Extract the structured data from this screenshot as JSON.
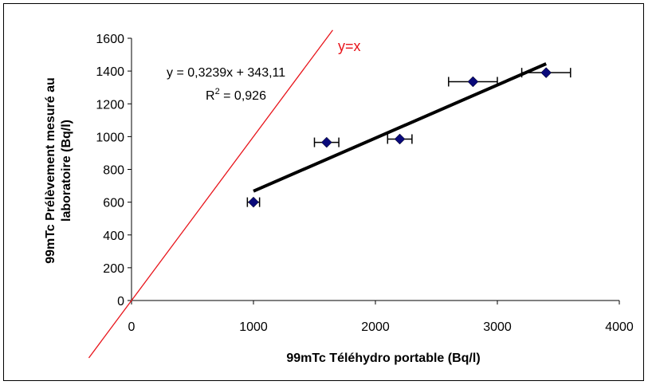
{
  "chart_data": {
    "type": "scatter",
    "title": "",
    "xlabel": "99mTc Téléhydro portable (Bq/l)",
    "ylabel_lines": [
      "99mTc Prélèvement mesuré au",
      "laboratoire (Bq/l)"
    ],
    "xlim": [
      0,
      4000
    ],
    "ylim": [
      0,
      1600
    ],
    "x_ticks": [
      "0",
      "1000",
      "2000",
      "3000",
      "4000"
    ],
    "y_ticks": [
      "0",
      "200",
      "400",
      "600",
      "800",
      "1000",
      "1200",
      "1400",
      "1600"
    ],
    "grid": false,
    "points": [
      {
        "x": 1000,
        "y": 600,
        "xerr": 50
      },
      {
        "x": 1600,
        "y": 965,
        "xerr": 100
      },
      {
        "x": 2200,
        "y": 985,
        "xerr": 100
      },
      {
        "x": 2800,
        "y": 1335,
        "xerr": 200
      },
      {
        "x": 3400,
        "y": 1390,
        "xerr": 200
      }
    ],
    "trendline": {
      "slope": 0.3239,
      "intercept": 343.11,
      "x_from": 1000,
      "x_to": 3400
    },
    "equation_text": "y = 0,3239x + 343,11",
    "r2_prefix": "R",
    "r2_sup": "2",
    "r2_value": " = 0,926",
    "reference_line": {
      "label": "y=x",
      "slope": 1,
      "intercept": 0,
      "x_from": -350,
      "x_to": 1650
    },
    "colors": {
      "marker": "#0a0a7a",
      "trend": "#000000",
      "reference": "#e8141b"
    }
  }
}
